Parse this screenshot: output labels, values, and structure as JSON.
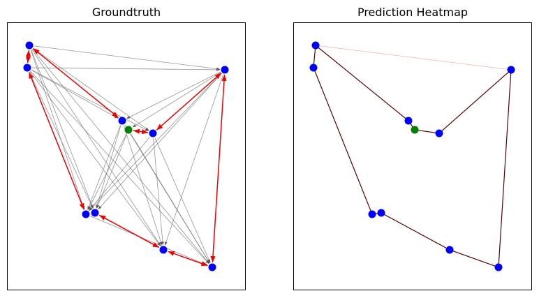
{
  "panels": [
    {
      "title": "Groundtruth"
    },
    {
      "title": "Prediction Heatmap"
    }
  ]
}
